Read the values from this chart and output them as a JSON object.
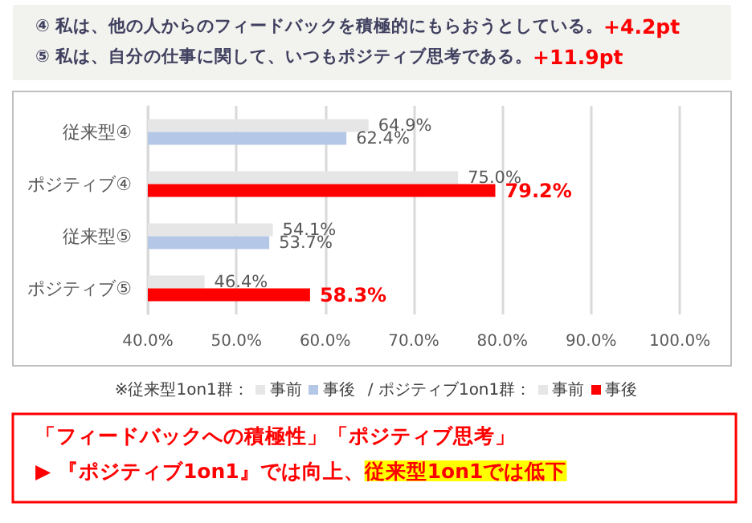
{
  "chart_data": {
    "type": "bar",
    "orientation": "horizontal",
    "title": "④ 私は、他の人からのフィードバックを積極的にもらおうとしている。",
    "subtitle": "⑤ 私は、自分の仕事に関して、いつもポジティブ思考である。",
    "categories": [
      "従来型④",
      "ポジティブ④",
      "従来型⑤",
      "ポジティブ⑤"
    ],
    "series": [
      {
        "name": "事前",
        "color": "#e7e6e6",
        "values": [
          64.9,
          75.0,
          54.1,
          46.4
        ],
        "value_labels": [
          "64.9%",
          "75.0%",
          "54.1%",
          "46.4%"
        ]
      },
      {
        "name": "事後",
        "color": "#b4c7e7",
        "colors": [
          "#b4c7e7",
          "#ff0000",
          "#b4c7e7",
          "#ff0000"
        ],
        "values": [
          62.4,
          79.2,
          53.7,
          58.3
        ],
        "value_labels": [
          "62.4%",
          "79.2%",
          "53.7%",
          "58.3%"
        ]
      }
    ],
    "xlim": [
      40,
      100
    ],
    "xticks": [
      {
        "value": 40,
        "label": "40.0%"
      },
      {
        "value": 50,
        "label": "50.0%"
      },
      {
        "value": 60,
        "label": "60.0%"
      },
      {
        "value": 70,
        "label": "70.0%"
      },
      {
        "value": 80,
        "label": "80.0%"
      },
      {
        "value": 90,
        "label": "90.0%"
      },
      {
        "value": 100,
        "label": "100.0%"
      }
    ],
    "grid": "x",
    "legend": "bottom",
    "annotations": [
      "+4.2pt",
      "+11.9pt",
      "※従来型1on1群：",
      "/ ポジティブ1on1群：",
      "「フィードバックへの積極性」「ポジティブ思考」",
      "▶ 『ポジティブ1on1』では向上、",
      "従来型1on1では低下"
    ]
  }
}
